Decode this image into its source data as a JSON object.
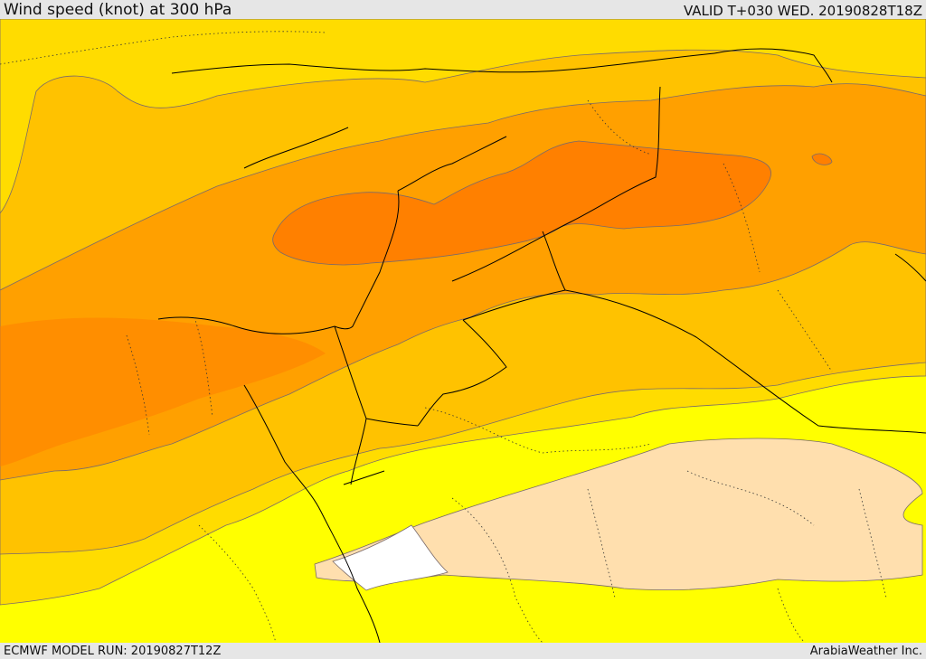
{
  "header": {
    "title": "Wind speed (knot) at 300 hPa",
    "valid": "VALID T+030 WED. 20190828T18Z"
  },
  "footer": {
    "model_run": "ECMWF MODEL RUN: 20190827T12Z",
    "brand": "ArabiaWeather Inc."
  },
  "map": {
    "fill_colors": {
      "white": "#ffffff",
      "pale": "#ffdfae",
      "yellow": "#ffff00",
      "gold": "#ffdc00",
      "amber": "#ffc200",
      "orange": "#ffa000",
      "deep_orange": "#ff8000"
    },
    "contour_color": "#7a6a6a",
    "border_color": "#000000"
  }
}
